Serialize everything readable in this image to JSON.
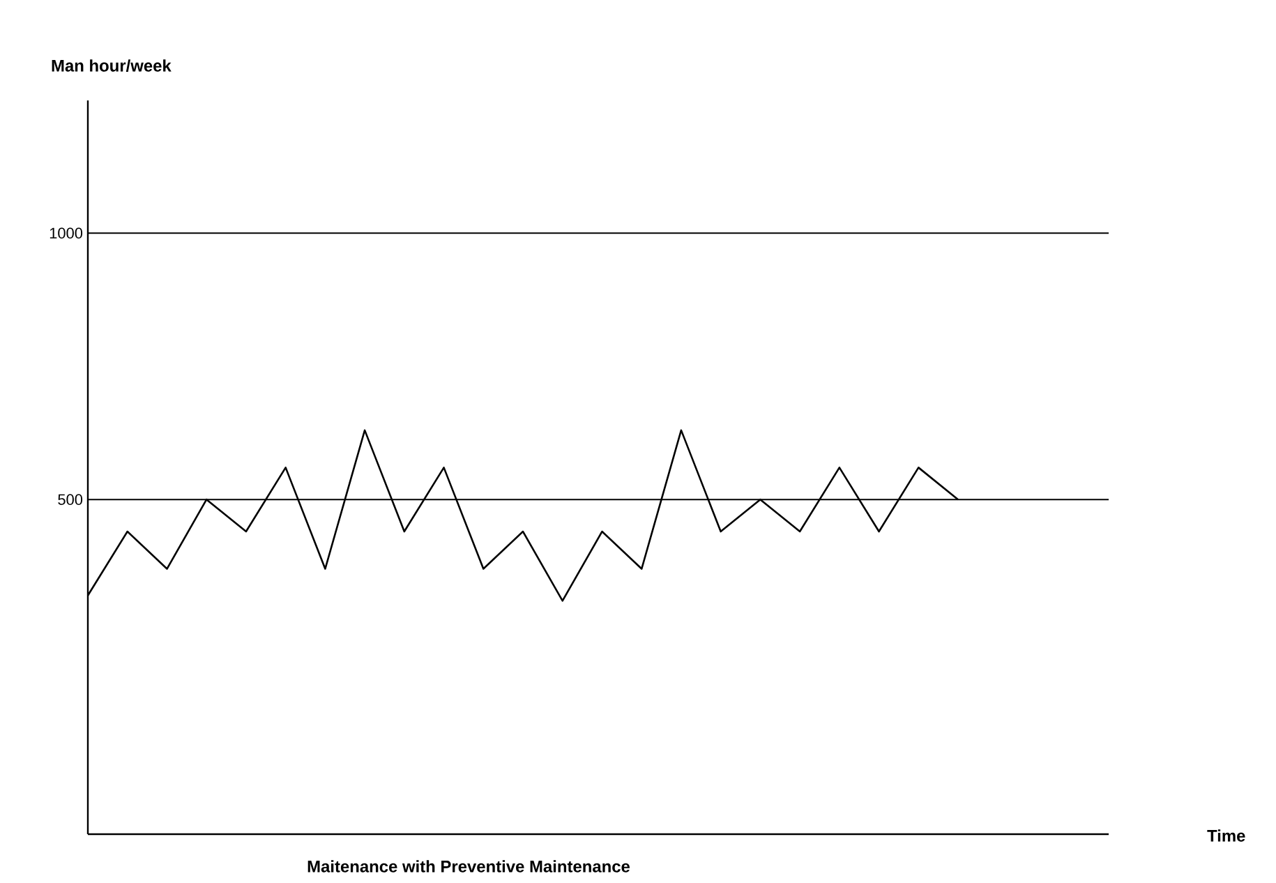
{
  "chart_data": {
    "type": "line",
    "title": "Maitenance with Preventive Maintenance",
    "annotations": [
      "Time"
    ],
    "ylabel": "Man hour/week",
    "categories": [
      null,
      null,
      null,
      null,
      null,
      null,
      null,
      null,
      null,
      null,
      null,
      null,
      null,
      null,
      null,
      null,
      null,
      null,
      null,
      null,
      null,
      null,
      null
    ],
    "series": [
      {
        "color": "#000000",
        "values": [
          320,
          440,
          370,
          500,
          440,
          560,
          370,
          630,
          440,
          560,
          370,
          440,
          310,
          440,
          370,
          630,
          440,
          500,
          440,
          560,
          440,
          560,
          500
        ]
      }
    ],
    "ylim": [
      -128,
      1249
    ],
    "yticks": [
      500,
      1000
    ],
    "marker": "none",
    "line_style": "solid",
    "ref_lines": [
      {
        "axis": "y",
        "value": 500,
        "color": "#000000"
      },
      {
        "axis": "y",
        "value": 1000,
        "color": "#000000"
      }
    ]
  }
}
